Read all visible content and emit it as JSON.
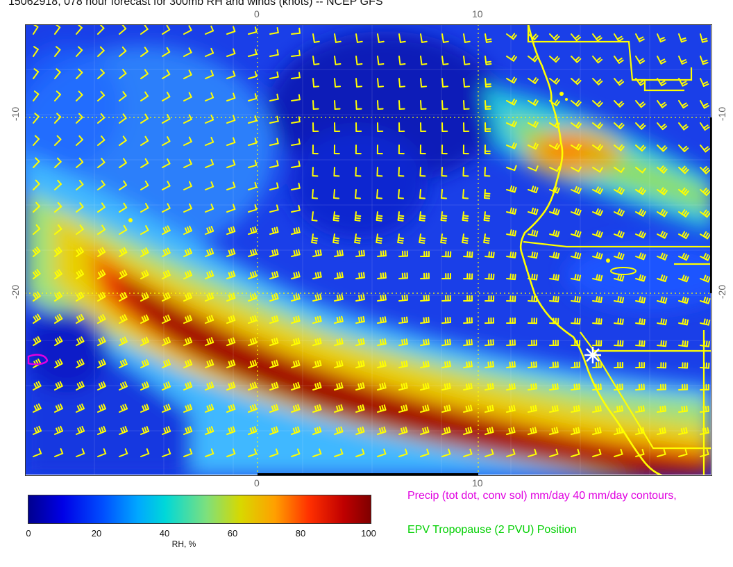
{
  "title": "15062918, 078 hour forecast for 300mb RH and winds (knots) -- NCEP GFS",
  "map": {
    "x_ticks": [
      {
        "label": "0"
      },
      {
        "label": "10"
      }
    ],
    "y_ticks": [
      {
        "label": "-10"
      },
      {
        "label": "-20"
      }
    ],
    "overlay_colors": {
      "barbs": "#ffff00",
      "coast": "#ffff00",
      "precip": "#e000e0",
      "tropopause_marker": "#ffffff"
    },
    "layers": [
      "rh-field",
      "wind-barbs",
      "coastline",
      "state-borders",
      "precip-contour",
      "tropopause-marker"
    ]
  },
  "colorbar": {
    "ticks": [
      "0",
      "20",
      "40",
      "60",
      "80",
      "100"
    ],
    "label": "RH, %",
    "colors": [
      "#00008f",
      "#0000e6",
      "#0050ff",
      "#00a8ff",
      "#00d8d8",
      "#7de07d",
      "#d8d800",
      "#ffa000",
      "#ff3000",
      "#c00000",
      "#800000"
    ]
  },
  "legend": {
    "precip": "Precip (tot dot, conv sol) mm/day 40 mm/day contours,",
    "epv": "EPV Tropopause (2 PVU) Position"
  }
}
